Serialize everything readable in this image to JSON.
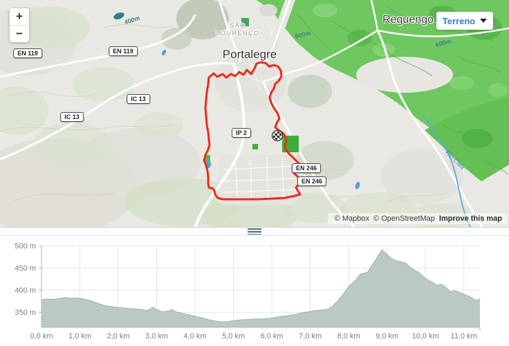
{
  "map": {
    "zoom_in_label": "+",
    "zoom_out_label": "−",
    "style_selector_label": "Terreno",
    "labels": {
      "city": "Portalegre",
      "town": "Reguengo",
      "suburb_line1": "SÃO",
      "suburb_line2": "LOURENÇO",
      "contour_400": "400m",
      "contour_600_a": "600m",
      "contour_600_b": "600m",
      "river": "Rio Caia"
    },
    "shields": [
      {
        "label": "EN 119"
      },
      {
        "label": "EN 119"
      },
      {
        "label": "IC 13"
      },
      {
        "label": "IC 13"
      },
      {
        "label": "IP 2"
      },
      {
        "label": "EN 246"
      },
      {
        "label": "EN 246"
      }
    ],
    "attribution": {
      "mapbox": "© Mapbox",
      "osm": "© OpenStreetMap",
      "improve": "Improve this map"
    },
    "route_color": "#ea2a1c",
    "marker": "checkered-flag-start-finish"
  },
  "chart_data": {
    "type": "area",
    "title": "",
    "xlabel": "",
    "ylabel": "",
    "x_unit": "km",
    "y_unit": "m",
    "xlim": [
      0,
      11.42
    ],
    "ylim": [
      316,
      522
    ],
    "grid": true,
    "legend": "none",
    "x_ticks": [
      {
        "v": 0,
        "label": "0,0 km"
      },
      {
        "v": 1,
        "label": "1,0 km"
      },
      {
        "v": 2,
        "label": "2,0 km"
      },
      {
        "v": 3,
        "label": "3,0 km"
      },
      {
        "v": 4,
        "label": "4,0 km"
      },
      {
        "v": 5,
        "label": "5,0 km"
      },
      {
        "v": 6,
        "label": "6,0 km"
      },
      {
        "v": 7,
        "label": "7,0 km"
      },
      {
        "v": 8,
        "label": "8,0 km"
      },
      {
        "v": 9,
        "label": "9,0 km"
      },
      {
        "v": 10,
        "label": "10,0 km"
      },
      {
        "v": 11,
        "label": "11,0 km"
      }
    ],
    "y_ticks": [
      {
        "v": 500,
        "label": "500 m"
      },
      {
        "v": 450,
        "label": "450 m"
      },
      {
        "v": 400,
        "label": "400 m"
      },
      {
        "v": 350,
        "label": "350 m"
      }
    ],
    "series": [
      {
        "name": "elevation",
        "points": [
          [
            0.0,
            378
          ],
          [
            0.15,
            380
          ],
          [
            0.3,
            379
          ],
          [
            0.45,
            381
          ],
          [
            0.6,
            383
          ],
          [
            0.75,
            382
          ],
          [
            0.9,
            382
          ],
          [
            1.05,
            381
          ],
          [
            1.2,
            378
          ],
          [
            1.35,
            374
          ],
          [
            1.5,
            369
          ],
          [
            1.65,
            365
          ],
          [
            1.8,
            363
          ],
          [
            2.0,
            361
          ],
          [
            2.2,
            359
          ],
          [
            2.4,
            358
          ],
          [
            2.6,
            356
          ],
          [
            2.75,
            354
          ],
          [
            2.9,
            361
          ],
          [
            3.0,
            356
          ],
          [
            3.15,
            351
          ],
          [
            3.3,
            353
          ],
          [
            3.4,
            356
          ],
          [
            3.5,
            351
          ],
          [
            3.65,
            348
          ],
          [
            3.8,
            345
          ],
          [
            4.0,
            341
          ],
          [
            4.2,
            337
          ],
          [
            4.4,
            332
          ],
          [
            4.55,
            330
          ],
          [
            4.7,
            328
          ],
          [
            4.85,
            329
          ],
          [
            5.0,
            331
          ],
          [
            5.2,
            333
          ],
          [
            5.4,
            334
          ],
          [
            5.6,
            335
          ],
          [
            5.8,
            335
          ],
          [
            6.0,
            337
          ],
          [
            6.2,
            340
          ],
          [
            6.4,
            342
          ],
          [
            6.6,
            345
          ],
          [
            6.8,
            349
          ],
          [
            7.0,
            352
          ],
          [
            7.15,
            354
          ],
          [
            7.3,
            355
          ],
          [
            7.45,
            357
          ],
          [
            7.55,
            362
          ],
          [
            7.7,
            374
          ],
          [
            7.85,
            390
          ],
          [
            8.0,
            408
          ],
          [
            8.1,
            416
          ],
          [
            8.2,
            424
          ],
          [
            8.3,
            436
          ],
          [
            8.4,
            438
          ],
          [
            8.5,
            441
          ],
          [
            8.6,
            455
          ],
          [
            8.7,
            468
          ],
          [
            8.8,
            482
          ],
          [
            8.87,
            491
          ],
          [
            8.95,
            484
          ],
          [
            9.1,
            472
          ],
          [
            9.25,
            466
          ],
          [
            9.4,
            463
          ],
          [
            9.5,
            460
          ],
          [
            9.6,
            452
          ],
          [
            9.7,
            446
          ],
          [
            9.8,
            441
          ],
          [
            9.9,
            434
          ],
          [
            10.0,
            427
          ],
          [
            10.1,
            421
          ],
          [
            10.2,
            417
          ],
          [
            10.3,
            411
          ],
          [
            10.42,
            413
          ],
          [
            10.55,
            405
          ],
          [
            10.65,
            396
          ],
          [
            10.75,
            399
          ],
          [
            10.85,
            396
          ],
          [
            11.0,
            391
          ],
          [
            11.1,
            387
          ],
          [
            11.2,
            383
          ],
          [
            11.3,
            378
          ],
          [
            11.38,
            377
          ],
          [
            11.42,
            382
          ]
        ]
      }
    ],
    "colors": {
      "fill": "#bac9c3",
      "stroke": "#9db5ae",
      "grid": "#e4e4e4",
      "axis": "#b4b4b4",
      "tick_text": "#7b7b7b"
    }
  }
}
